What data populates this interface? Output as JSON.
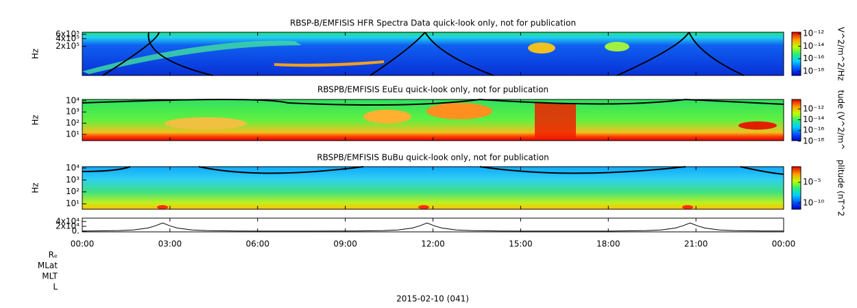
{
  "chart_data": [
    {
      "type": "heatmap",
      "title": "RBSP-B/EMFISIS  HFR Spectra Data quick-look only, not for publication",
      "ylabel": "Hz",
      "ylog": true,
      "ylim": [
        14000,
        720000
      ],
      "yticks": [
        {
          "value": 200000,
          "label": "2x10⁵"
        },
        {
          "value": 400000,
          "label": "4x10⁵"
        },
        {
          "value": 600000,
          "label": "6x10⁵"
        }
      ],
      "colorbar_label": "V^2/m^2/Hz",
      "zlim": [
        2.2e-19,
        1.7e-12
      ],
      "zticks": [
        {
          "value": 1e-12,
          "label": "10⁻¹²"
        },
        {
          "value": 1e-14,
          "label": "10⁻¹⁴"
        },
        {
          "value": 1e-16,
          "label": "10⁻¹⁶"
        },
        {
          "value": 1e-18,
          "label": "10⁻¹⁸"
        }
      ]
    },
    {
      "type": "heatmap",
      "title": "RBSPB/EMFISIS  EuEu quick-look only, not for publication",
      "ylabel": "Hz",
      "ylog": true,
      "ylim": [
        2.8,
        13000
      ],
      "yticks": [
        {
          "value": 10000,
          "label": "10⁴"
        },
        {
          "value": 1000,
          "label": "10³"
        },
        {
          "value": 100,
          "label": "10²"
        },
        {
          "value": 10,
          "label": "10¹"
        }
      ],
      "colorbar_label": "tude (V^2/m^",
      "zlim": [
        1.3e-18,
        6e-11
      ],
      "zticks": [
        {
          "value": 1e-12,
          "label": "10⁻¹²"
        },
        {
          "value": 1e-14,
          "label": "10⁻¹⁴"
        },
        {
          "value": 1e-16,
          "label": "10⁻¹⁶"
        },
        {
          "value": 1e-18,
          "label": "10⁻¹⁸"
        }
      ]
    },
    {
      "type": "heatmap",
      "title": "RBSPB/EMFISIS  BuBu quick-look only, not for publication",
      "ylabel": "Hz",
      "ylog": true,
      "ylim": [
        3.5,
        13000
      ],
      "yticks": [
        {
          "value": 10000,
          "label": "10⁴"
        },
        {
          "value": 1000,
          "label": "10³"
        },
        {
          "value": 100,
          "label": "10²"
        },
        {
          "value": 10,
          "label": "10¹"
        }
      ],
      "colorbar_label": "plitude (nT^2",
      "zlim": [
        3e-12,
        0.06
      ],
      "zticks": [
        {
          "value": 1e-05,
          "label": "10⁻⁵"
        },
        {
          "value": 1e-10,
          "label": "10⁻¹⁰"
        }
      ]
    },
    {
      "type": "line",
      "xlabel": "2015-02-10 (041)",
      "row_labels": [
        "Rₑ",
        "MLat",
        "MLT",
        "L"
      ],
      "xlim": [
        0,
        24
      ],
      "xticks": [
        {
          "value": 0,
          "label": "00:00"
        },
        {
          "value": 3,
          "label": "03:00"
        },
        {
          "value": 6,
          "label": "06:00"
        },
        {
          "value": 9,
          "label": "09:00"
        },
        {
          "value": 12,
          "label": "12:00"
        },
        {
          "value": 15,
          "label": "15:00"
        },
        {
          "value": 18,
          "label": "18:00"
        },
        {
          "value": 21,
          "label": "21:00"
        },
        {
          "value": 24,
          "label": "00:00"
        }
      ],
      "ylim": [
        -3000,
        54000
      ],
      "yticks": [
        {
          "value": 40000,
          "label": "4x10⁴"
        },
        {
          "value": 20000,
          "label": "2x10⁴"
        },
        {
          "value": 0,
          "label": "0."
        }
      ],
      "x": [
        0,
        0.25,
        1.25,
        1.75,
        2.25,
        2.5,
        2.75,
        3,
        3.25,
        3.75,
        4.25,
        5.25,
        7.5,
        9.3,
        10.3,
        10.8,
        11.3,
        11.55,
        11.8,
        12.05,
        12.3,
        12.8,
        13.3,
        14.3,
        16.5,
        18.3,
        19.3,
        19.8,
        20.3,
        20.55,
        20.8,
        21.05,
        21.3,
        21.8,
        22.3,
        23.3,
        24
      ],
      "values": [
        300,
        500,
        2500,
        5000,
        13000,
        22000,
        34000,
        22000,
        13000,
        5000,
        2500,
        500,
        200,
        500,
        2500,
        5000,
        13000,
        22000,
        34000,
        22000,
        13000,
        5000,
        2500,
        500,
        200,
        500,
        2500,
        5000,
        13000,
        22000,
        34000,
        22000,
        13000,
        5000,
        2500,
        500,
        300
      ],
      "color": "#000000"
    }
  ]
}
